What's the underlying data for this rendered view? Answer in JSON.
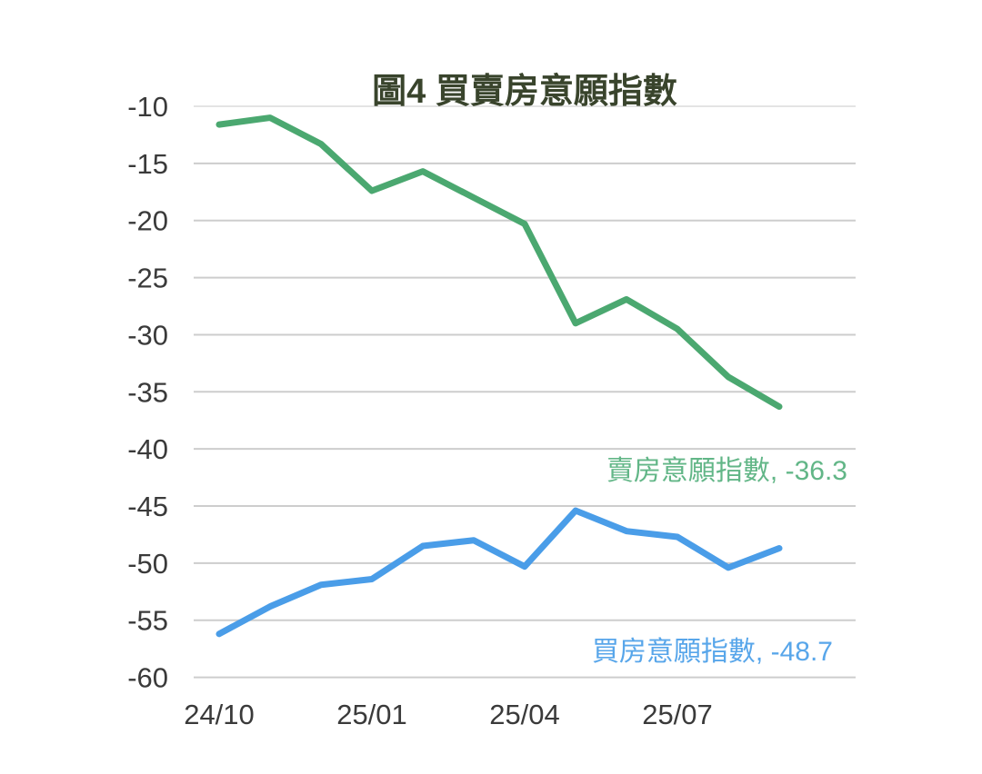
{
  "chart_data": {
    "type": "line",
    "title": "圖4 買賣房意願指數",
    "xlabel": "",
    "ylabel": "",
    "x": [
      "24/10",
      "24/11",
      "24/12",
      "25/01",
      "25/02",
      "25/03",
      "25/04",
      "25/05",
      "25/06",
      "25/07",
      "25/08",
      "25/09"
    ],
    "x_tick_labels": [
      "24/10",
      "25/01",
      "25/04",
      "25/07"
    ],
    "x_tick_indices": [
      0,
      3,
      6,
      9
    ],
    "y_ticks": [
      -10,
      -15,
      -20,
      -25,
      -30,
      -35,
      -40,
      -45,
      -50,
      -55,
      -60
    ],
    "ylim": [
      -60,
      -10
    ],
    "grid": true,
    "legend_position": "inline-data-labels",
    "series": [
      {
        "id": "sell",
        "name": "賣房意願指數",
        "label": "賣房意願指數, -36.3",
        "last_value": -36.3,
        "color": "#4ba870",
        "label_color": "#62b687",
        "values": [
          -11.6,
          -11.0,
          -13.3,
          -17.4,
          -15.7,
          -18.0,
          -20.3,
          -29.0,
          -26.9,
          -29.5,
          -33.7,
          -36.3
        ]
      },
      {
        "id": "buy",
        "name": "買房意願指數",
        "label": "買房意願指數, -48.7",
        "last_value": -48.7,
        "color": "#4a9de8",
        "label_color": "#58a6ea",
        "values": [
          -56.2,
          -53.8,
          -51.9,
          -51.4,
          -48.5,
          -48.0,
          -50.3,
          -45.4,
          -47.2,
          -47.7,
          -50.4,
          -48.7
        ]
      }
    ]
  },
  "colors": {
    "background": "#ffffff",
    "title_text": "#39442c",
    "axis_text": "#3a3a3a",
    "grid": "#cdcdcd",
    "grid_top": "#e4e4e4"
  }
}
